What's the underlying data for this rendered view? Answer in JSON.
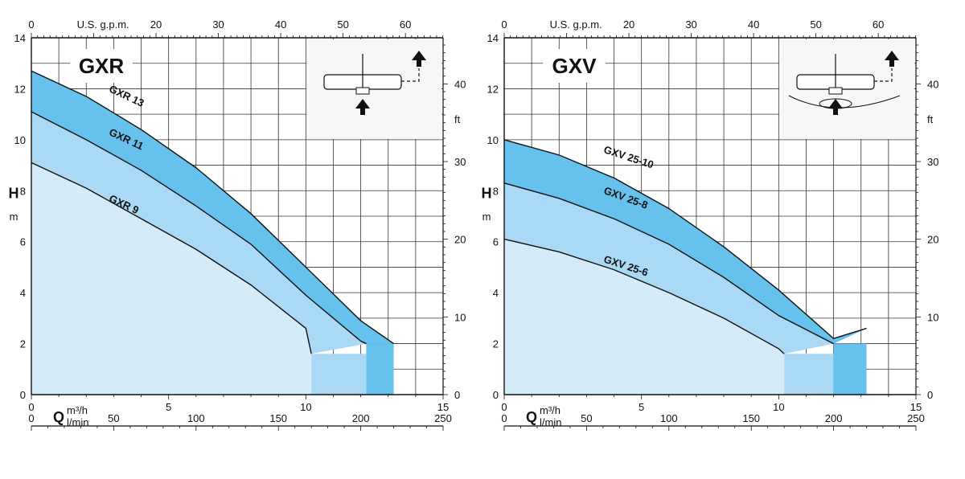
{
  "chart_data": [
    {
      "type": "line",
      "title": "GXR",
      "ylabel": "H",
      "ylabel_unit": "m",
      "ylim": [
        0,
        14
      ],
      "yticks": [
        0,
        2,
        4,
        6,
        8,
        10,
        12,
        14
      ],
      "xlabel": "Q",
      "xlabel_unit_1": "m³/h",
      "xlabel_unit_2": "l/min",
      "xlim": [
        0,
        15
      ],
      "xticks_m3h": [
        0,
        5,
        10,
        15
      ],
      "xticks_lmin": [
        0,
        50,
        100,
        150,
        200,
        250
      ],
      "xticks_gpm_label": "U.S. g.p.m.",
      "xticks_gpm": [
        0,
        20,
        30,
        40,
        50,
        60
      ],
      "ylabel_right_unit": "ft",
      "yticks_ft": [
        0,
        10,
        20,
        30,
        40
      ],
      "grid": true,
      "series": [
        {
          "name": "GXR 13",
          "x": [
            0,
            2,
            4,
            6,
            8,
            10,
            12,
            13.2
          ],
          "y": [
            12.7,
            11.7,
            10.4,
            8.9,
            7.1,
            5.0,
            2.9,
            2.0
          ]
        },
        {
          "name": "GXR 11",
          "x": [
            0,
            2,
            4,
            6,
            8,
            10,
            12,
            12.2
          ],
          "y": [
            11.1,
            10.0,
            8.8,
            7.4,
            5.9,
            3.9,
            2.1,
            2.0
          ]
        },
        {
          "name": "GXR 9",
          "x": [
            0,
            2,
            4,
            6,
            8,
            10,
            10.2
          ],
          "y": [
            9.1,
            8.1,
            6.9,
            5.7,
            4.3,
            2.6,
            1.6
          ]
        }
      ]
    },
    {
      "type": "line",
      "title": "GXV",
      "ylabel": "H",
      "ylabel_unit": "m",
      "ylim": [
        0,
        14
      ],
      "yticks": [
        0,
        2,
        4,
        6,
        8,
        10,
        12,
        14
      ],
      "xlabel": "Q",
      "xlabel_unit_1": "m³/h",
      "xlabel_unit_2": "l/min",
      "xlim": [
        0,
        15
      ],
      "xticks_m3h": [
        0,
        5,
        10,
        15
      ],
      "xticks_lmin": [
        0,
        50,
        100,
        150,
        200,
        250
      ],
      "xticks_gpm_label": "U.S. g.p.m.",
      "xticks_gpm": [
        0,
        20,
        30,
        40,
        50,
        60
      ],
      "ylabel_right_unit": "ft",
      "yticks_ft": [
        0,
        10,
        20,
        30,
        40
      ],
      "grid": true,
      "series": [
        {
          "name": "GXV 25-10",
          "x": [
            0,
            2,
            4,
            6,
            8,
            10,
            12,
            13.2
          ],
          "y": [
            10.0,
            9.4,
            8.5,
            7.3,
            5.8,
            4.1,
            2.2,
            2.6
          ]
        },
        {
          "name": "GXV 25-8",
          "x": [
            0,
            2,
            4,
            6,
            8,
            10,
            12
          ],
          "y": [
            8.3,
            7.7,
            6.9,
            5.9,
            4.6,
            3.1,
            2.0
          ]
        },
        {
          "name": "GXV 25-6",
          "x": [
            0,
            2,
            4,
            6,
            8,
            10,
            10.2
          ],
          "y": [
            6.1,
            5.6,
            4.9,
            4.0,
            3.0,
            1.8,
            1.6
          ]
        }
      ]
    }
  ]
}
